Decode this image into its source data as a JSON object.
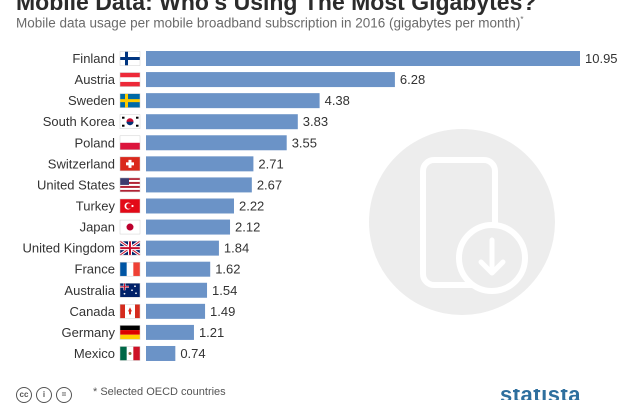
{
  "title": "Mobile Data: Who's Using The Most Gigabytes?",
  "subtitle": "Mobile data usage per mobile broadband subscription in 2016 (gigabytes per month)",
  "subtitle_marker": "*",
  "footnote": "* Selected OECD countries",
  "brand": "statista",
  "colors": {
    "bar": "#6b93c7",
    "value_text": "#333333",
    "label_text": "#333333"
  },
  "chart_data": {
    "type": "bar",
    "orientation": "horizontal",
    "title": "Mobile Data: Who's Using The Most Gigabytes?",
    "subtitle": "Mobile data usage per mobile broadband subscription in 2016 (gigabytes per month)",
    "categories": [
      "Finland",
      "Austria",
      "Sweden",
      "South Korea",
      "Poland",
      "Switzerland",
      "United States",
      "Turkey",
      "Japan",
      "United Kingdom",
      "France",
      "Australia",
      "Canada",
      "Germany",
      "Mexico"
    ],
    "values": [
      10.95,
      6.28,
      4.38,
      3.83,
      3.55,
      2.71,
      2.67,
      2.22,
      2.12,
      1.84,
      1.62,
      1.54,
      1.49,
      1.21,
      0.74
    ],
    "value_labels": [
      "10.95",
      "6.28",
      "4.38",
      "3.83",
      "3.55",
      "2.71",
      "2.67",
      "2.22",
      "2.12",
      "1.84",
      "1.62",
      "1.54",
      "1.49",
      "1.21",
      "0.74"
    ],
    "flags": [
      "finland-flag-icon",
      "austria-flag-icon",
      "sweden-flag-icon",
      "south-korea-flag-icon",
      "poland-flag-icon",
      "switzerland-flag-icon",
      "united-states-flag-icon",
      "turkey-flag-icon",
      "japan-flag-icon",
      "united-kingdom-flag-icon",
      "france-flag-icon",
      "australia-flag-icon",
      "canada-flag-icon",
      "germany-flag-icon",
      "mexico-flag-icon"
    ],
    "xlim": [
      0,
      10.95
    ],
    "grid": false,
    "legend": "none"
  }
}
